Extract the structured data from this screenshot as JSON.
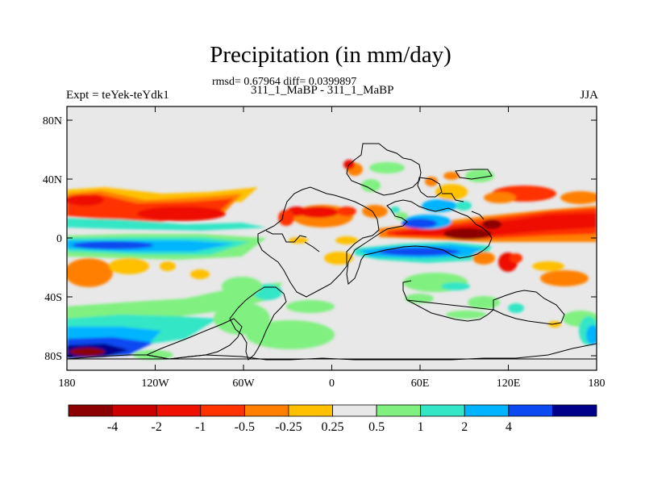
{
  "header": {
    "title": "Precipitation (in mm/day)",
    "stats": "rmsd= 0.67964 diff= 0.0399897",
    "runs": "311_1_MaBP - 311_1_MaBP",
    "experiment": "Expt = teYek-teYdk1",
    "season": "JJA"
  },
  "axes": {
    "x_ticks": [
      "180",
      "120W",
      "60W",
      "0",
      "60E",
      "120E",
      "180"
    ],
    "y_ticks": [
      "80N",
      "40N",
      "0",
      "40S",
      "80S"
    ]
  },
  "colorbar": {
    "labels": [
      "-4",
      "-2",
      "-1",
      "-0.5",
      "-0.25",
      "0.25",
      "0.5",
      "1",
      "2",
      "4"
    ],
    "colors": [
      "#8b0000",
      "#cc0000",
      "#ee1100",
      "#ff3300",
      "#ff8000",
      "#ffc000",
      "#e8e8e8",
      "#80f080",
      "#33e6c6",
      "#00b4ff",
      "#0a4af0",
      "#00008b"
    ]
  },
  "chart_data": {
    "type": "heatmap",
    "title": "Precipitation (in mm/day)",
    "variable": "precipitation difference",
    "units": "mm/day",
    "x_range": [
      -180,
      180
    ],
    "y_range": [
      -90,
      90
    ],
    "contour_levels": [
      -4,
      -2,
      -1,
      -0.5,
      -0.25,
      0.25,
      0.5,
      1,
      2,
      4
    ]
  }
}
